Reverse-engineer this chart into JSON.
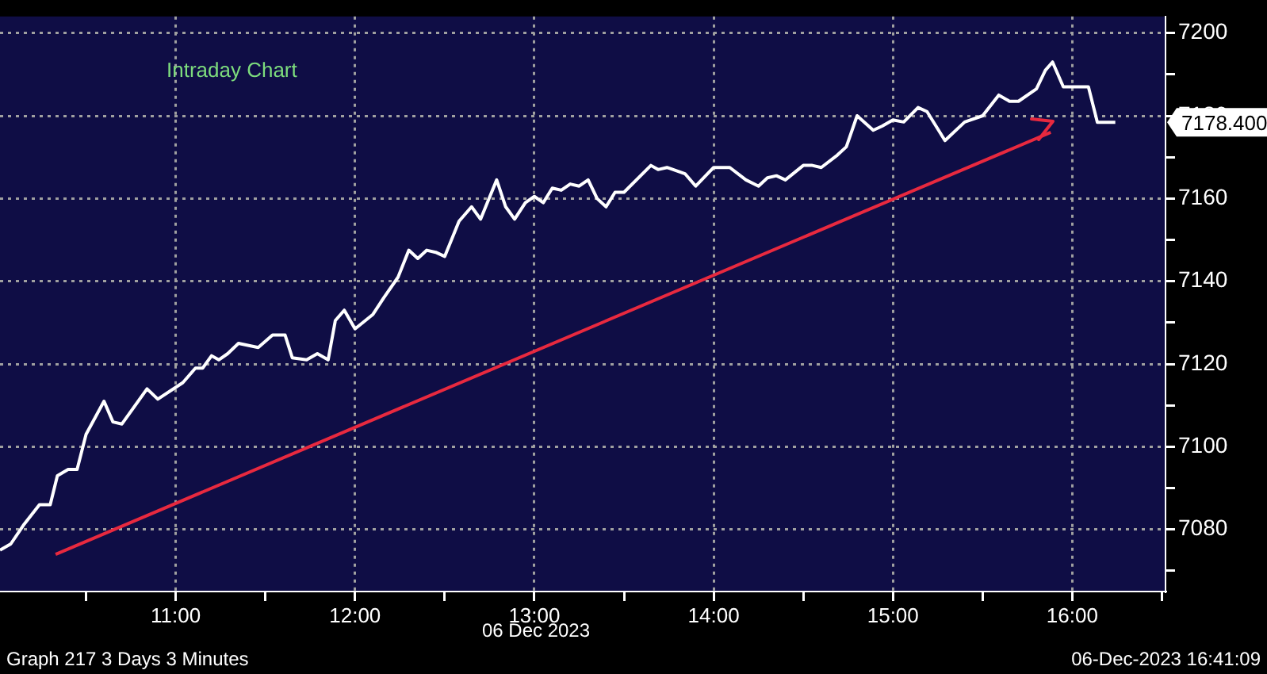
{
  "chart_data": {
    "type": "line",
    "title": "Intraday Chart",
    "annotations": [
      "06 Dec 2023",
      "Graph 217 3 Days 3 Minutes",
      "06-Dec-2023 16:41:09",
      "7178.400"
    ],
    "xlim": [
      10.02,
      16.52
    ],
    "ylim": [
      7065,
      7204
    ],
    "xticks": [
      {
        "value": 10.5,
        "label": null
      },
      {
        "value": 11,
        "label": "11:00"
      },
      {
        "value": 11.5,
        "label": null
      },
      {
        "value": 12,
        "label": "12:00"
      },
      {
        "value": 12.5,
        "label": null
      },
      {
        "value": 13,
        "label": "13:00"
      },
      {
        "value": 13.5,
        "label": null
      },
      {
        "value": 14,
        "label": "14:00"
      },
      {
        "value": 14.5,
        "label": null
      },
      {
        "value": 15,
        "label": "15:00"
      },
      {
        "value": 15.5,
        "label": null
      },
      {
        "value": 16,
        "label": "16:00"
      },
      {
        "value": 16.5,
        "label": null
      }
    ],
    "yticks": [
      {
        "value": 7070,
        "label": null
      },
      7080,
      {
        "value": 7090,
        "label": null
      },
      7100,
      {
        "value": 7110,
        "label": null
      },
      7120,
      {
        "value": 7130,
        "label": null
      },
      7140,
      {
        "value": 7150,
        "label": null
      },
      7160,
      {
        "value": 7170,
        "label": null
      },
      7180,
      {
        "value": 7190,
        "label": null
      },
      7200
    ],
    "grid": true,
    "legend": false,
    "marker": "none",
    "line_style": "solid",
    "series": [
      {
        "color": "#ffffff",
        "x": [
          10.02,
          10.08,
          10.15,
          10.24,
          10.3,
          10.34,
          10.4,
          10.45,
          10.5,
          10.6,
          10.65,
          10.7,
          10.84,
          10.9,
          11.04,
          11.11,
          11.15,
          11.2,
          11.24,
          11.29,
          11.35,
          11.46,
          11.54,
          11.61,
          11.65,
          11.73,
          11.79,
          11.85,
          11.89,
          11.94,
          12.0,
          12.1,
          12.16,
          12.24,
          12.3,
          12.35,
          12.4,
          12.45,
          12.5,
          12.58,
          12.65,
          12.7,
          12.79,
          12.84,
          12.89,
          12.95,
          13.0,
          13.05,
          13.1,
          13.15,
          13.2,
          13.25,
          13.3,
          13.35,
          13.4,
          13.45,
          13.5,
          13.65,
          13.69,
          13.74,
          13.84,
          13.9,
          14.0,
          14.09,
          14.18,
          14.25,
          14.3,
          14.35,
          14.4,
          14.5,
          14.55,
          14.6,
          14.69,
          14.74,
          14.8,
          14.89,
          14.94,
          15.0,
          15.06,
          15.14,
          15.19,
          15.29,
          15.4,
          15.5,
          15.59,
          15.65,
          15.7,
          15.8,
          15.85,
          15.89,
          15.95,
          16.09,
          16.14,
          16.24
        ],
        "values": [
          7075,
          7076.5,
          7081,
          7086,
          7086,
          7093,
          7094.5,
          7094.5,
          7103,
          7111,
          7106,
          7105.5,
          7114,
          7111.5,
          7115.5,
          7119,
          7119,
          7122,
          7121,
          7122.5,
          7125,
          7124,
          7127,
          7127,
          7121.5,
          7121,
          7122.5,
          7121,
          7130.5,
          7133,
          7128.5,
          7132,
          7136,
          7141,
          7147.5,
          7145.5,
          7147.5,
          7147,
          7146,
          7154.5,
          7158,
          7155,
          7164.5,
          7158,
          7155,
          7159,
          7160.5,
          7159,
          7162.5,
          7162,
          7163.5,
          7163,
          7164.5,
          7160,
          7158,
          7161.5,
          7161.5,
          7168,
          7167,
          7167.5,
          7166,
          7163,
          7167.5,
          7167.5,
          7164.5,
          7163,
          7165,
          7165.5,
          7164.5,
          7168,
          7168,
          7167.5,
          7170.5,
          7172.5,
          7180,
          7176.5,
          7177.5,
          7179,
          7178.5,
          7182,
          7181,
          7174,
          7178.5,
          7180,
          7185,
          7183.5,
          7183.5,
          7186.5,
          7191,
          7193,
          7187,
          7187,
          7178.4,
          7178.4
        ]
      },
      {
        "type": "line",
        "color": "#e8293f",
        "x": [
          10.33,
          15.88
        ],
        "values": [
          7074,
          7176
        ]
      }
    ]
  }
}
